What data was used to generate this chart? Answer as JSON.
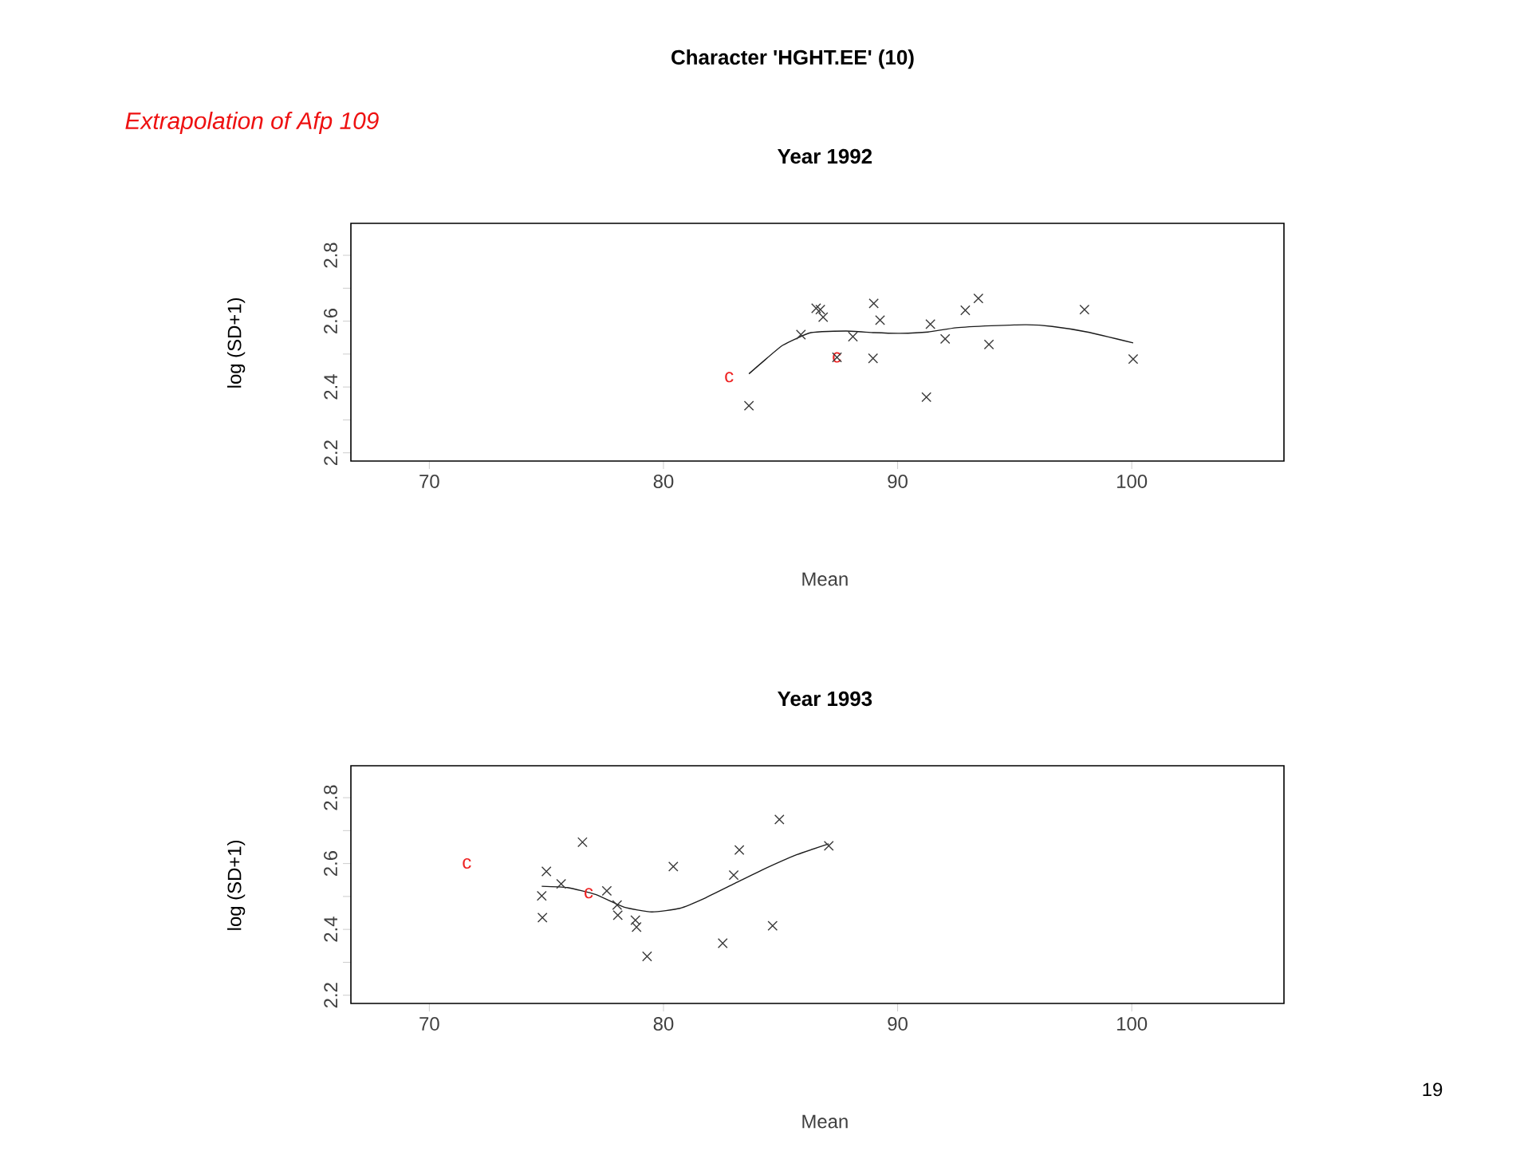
{
  "chart_data": [
    {
      "type": "scatter",
      "title": "Character 'HGHT.EE' (10)",
      "subtitle": "Year  1992",
      "xlabel": "Mean",
      "ylabel": "log (SD+1)",
      "xlim": [
        66.65,
        106.5
      ],
      "ylim": [
        2.175,
        2.897
      ],
      "xticks": [
        70,
        80,
        90,
        100
      ],
      "yticks": [
        2.2,
        {
          "value": 2.3,
          "label": null
        },
        2.4,
        {
          "value": 2.5,
          "label": null
        },
        2.6,
        {
          "value": 2.7,
          "label": null
        },
        2.8
      ],
      "marker": "cross",
      "annotations": [
        "Extrapolation of Afp 109",
        "c",
        "c"
      ],
      "series": [
        {
          "color": "#3a3a3a",
          "x": [
            83.65,
            85.87,
            86.52,
            86.7,
            86.82,
            88.09,
            87.41,
            88.98,
            89.25,
            88.95,
            91.23,
            91.4,
            92.03,
            92.89,
            93.45,
            93.9,
            97.98,
            100.06
          ],
          "values": [
            2.343,
            2.559,
            2.639,
            2.635,
            2.612,
            2.553,
            2.49,
            2.654,
            2.603,
            2.487,
            2.369,
            2.591,
            2.546,
            2.633,
            2.669,
            2.529,
            2.635,
            2.485
          ]
        },
        {
          "type": "line",
          "color": "#1a1a1a",
          "marker": "none",
          "line_style": "solid",
          "x": [
            83.65,
            84.2,
            85.1,
            86.3,
            87.8,
            89,
            90.1,
            91.3,
            92.5,
            94,
            95.5,
            96.6,
            98.1,
            100.06
          ],
          "values": [
            2.44,
            2.474,
            2.527,
            2.565,
            2.57,
            2.565,
            2.563,
            2.567,
            2.58,
            2.586,
            2.589,
            2.584,
            2.567,
            2.534
          ]
        }
      ]
    },
    {
      "type": "scatter",
      "subtitle": "Year  1993",
      "xlabel": "Mean",
      "ylabel": "log (SD+1)",
      "xlim": [
        66.65,
        106.5
      ],
      "ylim": [
        2.175,
        2.897
      ],
      "xticks": [
        70,
        80,
        90,
        100
      ],
      "yticks": [
        2.2,
        {
          "value": 2.3,
          "label": null
        },
        2.4,
        {
          "value": 2.5,
          "label": null
        },
        2.6,
        {
          "value": 2.7,
          "label": null
        },
        2.8
      ],
      "marker": "cross",
      "annotations": [
        "19",
        "c",
        "c"
      ],
      "series": [
        {
          "color": "#3a3a3a",
          "x": [
            74.8,
            74.83,
            75.0,
            75.63,
            76.54,
            77.58,
            78.02,
            78.05,
            78.8,
            78.85,
            79.3,
            80.42,
            82.53,
            83.0,
            83.24,
            84.66,
            84.95,
            87.06
          ],
          "values": [
            2.502,
            2.436,
            2.576,
            2.538,
            2.665,
            2.517,
            2.474,
            2.443,
            2.428,
            2.407,
            2.318,
            2.591,
            2.358,
            2.565,
            2.641,
            2.411,
            2.734,
            2.654
          ]
        },
        {
          "type": "line",
          "color": "#1a1a1a",
          "marker": "none",
          "line_style": "solid",
          "x": [
            74.8,
            75.9,
            77.1,
            78.3,
            79.5,
            80.7,
            81.8,
            83.0,
            84.2,
            85.7,
            87.06
          ],
          "values": [
            2.531,
            2.527,
            2.506,
            2.468,
            2.453,
            2.464,
            2.496,
            2.538,
            2.58,
            2.627,
            2.66
          ]
        }
      ]
    }
  ]
}
